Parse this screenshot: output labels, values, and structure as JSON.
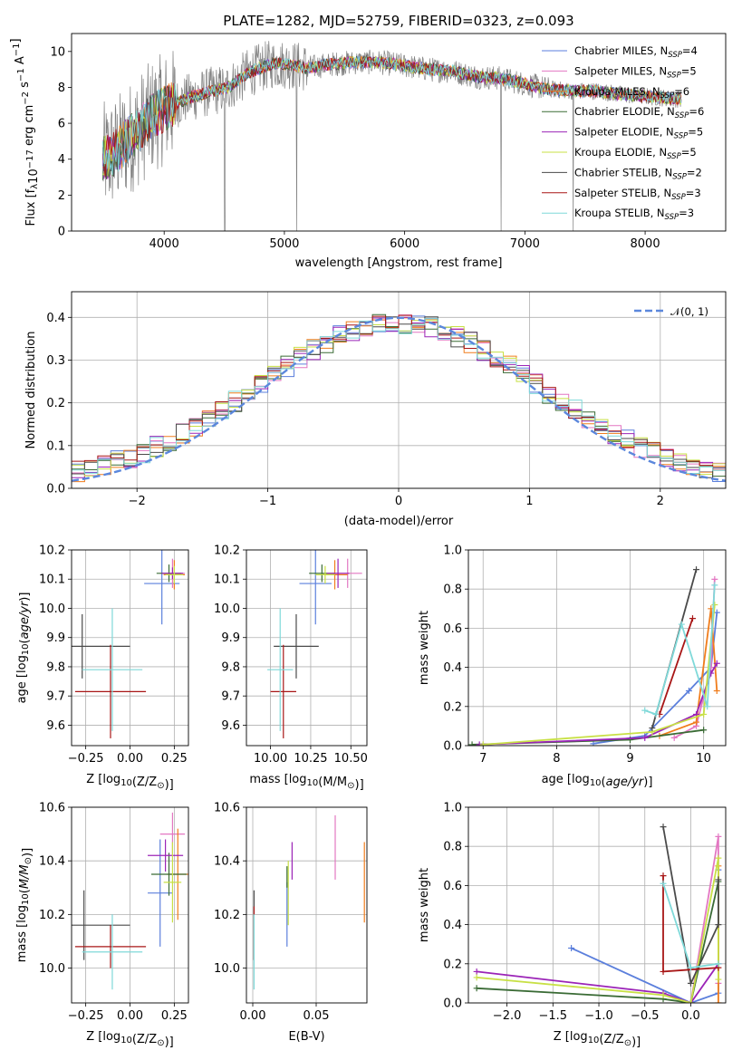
{
  "colors": {
    "chab_miles": "#5b7fdc",
    "salp_miles": "#e377c2",
    "krou_miles": "#f07d1c",
    "chab_elodie": "#3a6b35",
    "salp_elodie": "#9b24b7",
    "krou_elodie": "#c8e045",
    "chab_stelib": "#4a4a4a",
    "salp_stelib": "#a81616",
    "krou_stelib": "#7fd9d9",
    "data": "#808080",
    "gauss": "#5b87dc",
    "grid": "#b0b0b0"
  },
  "chart_data": [
    {
      "id": "spectrum",
      "type": "line",
      "title": "PLATE=1282, MJD=52759, FIBERID=0323, z=0.093",
      "xlabel": "wavelength [Angstrom, rest frame]",
      "ylabel_pre": "Flux [f",
      "ylabel_sub": "λ",
      "ylabel_mid": "10",
      "ylabel_exp": "−17",
      "ylabel_mid2": " erg cm",
      "ylabel_exp2": "−2",
      "ylabel_mid3": " s",
      "ylabel_exp3": "−1",
      "ylabel_mid4": " A",
      "ylabel_exp4": "−1",
      "ylabel_end": "]",
      "xlim": [
        3230,
        8670
      ],
      "ylim": [
        0,
        11
      ],
      "xticks": [
        4000,
        5000,
        6000,
        7000,
        8000
      ],
      "yticks": [
        0,
        2,
        4,
        6,
        8,
        10
      ],
      "legend_pos": "top-right",
      "continuum": [
        [
          3490,
          4.0
        ],
        [
          3600,
          4.4
        ],
        [
          3700,
          5.1
        ],
        [
          3800,
          5.7
        ],
        [
          3900,
          6.4
        ],
        [
          4000,
          6.8
        ],
        [
          4100,
          7.1
        ],
        [
          4200,
          7.4
        ],
        [
          4300,
          7.6
        ],
        [
          4400,
          7.8
        ],
        [
          4500,
          7.9
        ],
        [
          4600,
          8.3
        ],
        [
          4700,
          8.8
        ],
        [
          4800,
          9.1
        ],
        [
          4900,
          9.3
        ],
        [
          5000,
          9.3
        ],
        [
          5200,
          9.1
        ],
        [
          5400,
          9.3
        ],
        [
          5600,
          9.4
        ],
        [
          5800,
          9.4
        ],
        [
          6000,
          9.2
        ],
        [
          6200,
          9.0
        ],
        [
          6400,
          8.9
        ],
        [
          6600,
          8.6
        ],
        [
          6800,
          8.5
        ],
        [
          7000,
          8.2
        ],
        [
          7200,
          7.9
        ],
        [
          7400,
          7.8
        ],
        [
          7600,
          7.8
        ],
        [
          7800,
          7.6
        ],
        [
          8000,
          7.5
        ],
        [
          8200,
          7.4
        ],
        [
          8300,
          7.35
        ]
      ],
      "series": [
        {
          "key": "chab_miles",
          "name": "Chabrier MILES, N",
          "sub": "SSP",
          "val": "=4"
        },
        {
          "key": "salp_miles",
          "name": "Salpeter MILES, N",
          "sub": "SSP",
          "val": "=5"
        },
        {
          "key": "krou_miles",
          "name": "Kroupa MILES, N",
          "sub": "SSP",
          "val": "=6"
        },
        {
          "key": "chab_elodie",
          "name": "Chabrier ELODIE, N",
          "sub": "SSP",
          "val": "=6"
        },
        {
          "key": "salp_elodie",
          "name": "Salpeter ELODIE, N",
          "sub": "SSP",
          "val": "=5"
        },
        {
          "key": "krou_elodie",
          "name": "Kroupa ELODIE, N",
          "sub": "SSP",
          "val": "=5"
        },
        {
          "key": "chab_stelib",
          "name": "Chabrier STELIB, N",
          "sub": "SSP",
          "val": "=2"
        },
        {
          "key": "salp_stelib",
          "name": "Salpeter STELIB, N",
          "sub": "SSP",
          "val": "=3"
        },
        {
          "key": "krou_stelib",
          "name": "Kroupa STELIB, N",
          "sub": "SSP",
          "val": "=3"
        }
      ]
    },
    {
      "id": "hist",
      "type": "line",
      "xlabel": "(data-model)/error",
      "ylabel": "Normed distribution",
      "xlim": [
        -2.5,
        2.5
      ],
      "ylim": [
        0,
        0.46
      ],
      "xticks": [
        -2,
        -1,
        0,
        1,
        2
      ],
      "yticks": [
        0.0,
        0.1,
        0.2,
        0.3,
        0.4
      ],
      "legend_pos": "top-right",
      "gauss_label": "𝒩(0, 1)",
      "bin_width": 0.1,
      "hist_series": [
        "chab_miles",
        "salp_miles",
        "krou_miles",
        "chab_elodie",
        "salp_elodie",
        "krou_elodie",
        "chab_stelib",
        "salp_stelib",
        "krou_stelib"
      ]
    },
    {
      "id": "age_z",
      "type": "scatter",
      "xlabel_pre": "Z [log",
      "xlabel_sub": "10",
      "xlabel_post": "(Z/Z",
      "xlabel_sun": "⊙",
      "xlabel_end": ")]",
      "ylabel": "age  [log10(age/yr)]",
      "xlim": [
        -0.33,
        0.33
      ],
      "ylim": [
        9.53,
        10.2
      ],
      "xticks": [
        -0.25,
        0.0,
        0.25
      ],
      "yticks": [
        9.6,
        9.7,
        9.8,
        9.9,
        10.0,
        10.1,
        10.2
      ],
      "points": [
        {
          "key": "chab_miles",
          "x": 0.18,
          "xe": 0.1,
          "y": 10.085,
          "ye": 0.14
        },
        {
          "key": "salp_miles",
          "x": 0.24,
          "xe": 0.07,
          "y": 10.12,
          "ye": 0.05
        },
        {
          "key": "krou_miles",
          "x": 0.25,
          "xe": 0.06,
          "y": 10.115,
          "ye": 0.05
        },
        {
          "key": "chab_elodie",
          "x": 0.22,
          "xe": 0.07,
          "y": 10.12,
          "ye": 0.03
        },
        {
          "key": "salp_elodie",
          "x": 0.24,
          "xe": 0.06,
          "y": 10.12,
          "ye": 0.02
        },
        {
          "key": "krou_elodie",
          "x": 0.25,
          "xe": 0.05,
          "y": 10.115,
          "ye": 0.03
        },
        {
          "key": "chab_stelib",
          "x": -0.27,
          "xe": 0.27,
          "y": 9.87,
          "ye": 0.11
        },
        {
          "key": "salp_stelib",
          "x": -0.11,
          "xe": 0.2,
          "y": 9.715,
          "ye": 0.16
        },
        {
          "key": "krou_stelib",
          "x": -0.1,
          "xe": 0.17,
          "y": 9.79,
          "ye": 0.21
        }
      ]
    },
    {
      "id": "age_mass",
      "type": "scatter",
      "xlabel_pre": "mass [log",
      "xlabel_sub": "10",
      "xlabel_post": "(M/M",
      "xlabel_sun": "⊙",
      "xlabel_end": ")]",
      "xlim": [
        9.85,
        10.6
      ],
      "ylim": [
        9.53,
        10.2
      ],
      "xticks": [
        10.0,
        10.25,
        10.5
      ],
      "yticks": [
        9.6,
        9.7,
        9.8,
        9.9,
        10.0,
        10.1,
        10.2
      ],
      "points": [
        {
          "key": "chab_miles",
          "x": 10.28,
          "xe": 0.1,
          "y": 10.085,
          "ye": 0.14
        },
        {
          "key": "salp_miles",
          "x": 10.48,
          "xe": 0.09,
          "y": 10.12,
          "ye": 0.05
        },
        {
          "key": "krou_miles",
          "x": 10.4,
          "xe": 0.08,
          "y": 10.115,
          "ye": 0.05
        },
        {
          "key": "chab_elodie",
          "x": 10.32,
          "xe": 0.08,
          "y": 10.12,
          "ye": 0.03
        },
        {
          "key": "salp_elodie",
          "x": 10.42,
          "xe": 0.07,
          "y": 10.12,
          "ye": 0.05
        },
        {
          "key": "krou_elodie",
          "x": 10.34,
          "xe": 0.06,
          "y": 10.115,
          "ye": 0.03
        },
        {
          "key": "chab_stelib",
          "x": 10.16,
          "xe": 0.14,
          "y": 9.87,
          "ye": 0.11
        },
        {
          "key": "salp_stelib",
          "x": 10.08,
          "xe": 0.08,
          "y": 9.715,
          "ye": 0.16
        },
        {
          "key": "krou_stelib",
          "x": 10.06,
          "xe": 0.08,
          "y": 9.79,
          "ye": 0.21
        }
      ]
    },
    {
      "id": "mw_age",
      "type": "line",
      "xlabel": "age  [log10(age/yr)]",
      "ylabel": "mass weight",
      "xlim": [
        6.8,
        10.3
      ],
      "ylim": [
        0,
        1
      ],
      "xticks": [
        7,
        8,
        9,
        10
      ],
      "yticks": [
        0.0,
        0.2,
        0.4,
        0.6,
        0.8,
        1.0
      ],
      "lines": [
        {
          "key": "chab_miles",
          "x": [
            8.5,
            9.2,
            9.8,
            10.1,
            10.18
          ],
          "y": [
            0.01,
            0.05,
            0.28,
            0.4,
            0.68
          ]
        },
        {
          "key": "salp_miles",
          "x": [
            9.6,
            9.9,
            10.1,
            10.15
          ],
          "y": [
            0.04,
            0.1,
            0.4,
            0.85
          ]
        },
        {
          "key": "krou_miles",
          "x": [
            9.4,
            9.9,
            10.1,
            10.18
          ],
          "y": [
            0.05,
            0.12,
            0.7,
            0.28
          ]
        },
        {
          "key": "chab_elodie",
          "x": [
            6.85,
            9.0,
            10.0
          ],
          "y": [
            0.005,
            0.03,
            0.08
          ]
        },
        {
          "key": "salp_elodie",
          "x": [
            6.95,
            9.2,
            9.9,
            10.1,
            10.18
          ],
          "y": [
            0.005,
            0.04,
            0.16,
            0.37,
            0.42
          ]
        },
        {
          "key": "krou_elodie",
          "x": [
            7.0,
            9.3,
            10.0,
            10.15
          ],
          "y": [
            0.005,
            0.07,
            0.16,
            0.72
          ]
        },
        {
          "key": "chab_stelib",
          "x": [
            9.3,
            9.9
          ],
          "y": [
            0.09,
            0.9
          ]
        },
        {
          "key": "salp_stelib",
          "x": [
            9.4,
            9.85
          ],
          "y": [
            0.16,
            0.65
          ]
        },
        {
          "key": "krou_stelib",
          "x": [
            9.2,
            9.35,
            9.7,
            10.05,
            10.15
          ],
          "y": [
            0.18,
            0.16,
            0.62,
            0.2,
            0.82
          ]
        }
      ]
    },
    {
      "id": "mass_z",
      "type": "scatter",
      "xlabel_pre": "Z [log",
      "xlabel_sub": "10",
      "xlabel_post": "(Z/Z",
      "xlabel_sun": "⊙",
      "xlabel_end": ")]",
      "ylabel": "mass [log10(M/M⊙)]",
      "xlim": [
        -0.33,
        0.33
      ],
      "ylim": [
        9.87,
        10.6
      ],
      "xticks": [
        -0.25,
        0.0,
        0.25
      ],
      "yticks": [
        10.0,
        10.2,
        10.4,
        10.6
      ],
      "points": [
        {
          "key": "chab_miles",
          "x": 0.17,
          "xe": 0.07,
          "y": 10.28,
          "ye": 0.2
        },
        {
          "key": "salp_miles",
          "x": 0.24,
          "xe": 0.07,
          "y": 10.5,
          "ye": 0.08
        },
        {
          "key": "krou_miles",
          "x": 0.27,
          "xe": 0.06,
          "y": 10.35,
          "ye": 0.17
        },
        {
          "key": "chab_elodie",
          "x": 0.22,
          "xe": 0.1,
          "y": 10.35,
          "ye": 0.08
        },
        {
          "key": "salp_elodie",
          "x": 0.2,
          "xe": 0.1,
          "y": 10.42,
          "ye": 0.06
        },
        {
          "key": "krou_elodie",
          "x": 0.24,
          "xe": 0.05,
          "y": 10.32,
          "ye": 0.15
        },
        {
          "key": "chab_stelib",
          "x": -0.26,
          "xe": 0.26,
          "y": 10.16,
          "ye": 0.13
        },
        {
          "key": "salp_stelib",
          "x": -0.11,
          "xe": 0.2,
          "y": 10.08,
          "ye": 0.08
        },
        {
          "key": "krou_stelib",
          "x": -0.1,
          "xe": 0.17,
          "y": 10.06,
          "ye": 0.14
        }
      ]
    },
    {
      "id": "mass_ebv",
      "type": "scatter",
      "xlabel": "E(B-V)",
      "xlim": [
        -0.005,
        0.09
      ],
      "ylim": [
        9.87,
        10.6
      ],
      "xticks": [
        0.0,
        0.05
      ],
      "yticks": [
        10.0,
        10.2,
        10.4,
        10.6
      ],
      "points": [
        {
          "key": "chab_miles",
          "x": 0.027,
          "y": 10.2,
          "ye": 0.12
        },
        {
          "key": "salp_miles",
          "x": 0.065,
          "y": 10.45,
          "ye": 0.12
        },
        {
          "key": "krou_miles",
          "x": 0.088,
          "y": 10.32,
          "ye": 0.15
        },
        {
          "key": "chab_elodie",
          "x": 0.027,
          "y": 10.34,
          "ye": 0.04
        },
        {
          "key": "salp_elodie",
          "x": 0.031,
          "y": 10.4,
          "ye": 0.07
        },
        {
          "key": "krou_elodie",
          "x": 0.028,
          "y": 10.28,
          "ye": 0.12
        },
        {
          "key": "chab_stelib",
          "x": 0.001,
          "y": 10.16,
          "ye": 0.13
        },
        {
          "key": "salp_stelib",
          "x": 0.001,
          "y": 10.13,
          "ye": 0.1
        },
        {
          "key": "krou_stelib",
          "x": 0.001,
          "y": 10.06,
          "ye": 0.14
        }
      ]
    },
    {
      "id": "mw_z",
      "type": "line",
      "xlabel_pre": "Z [log",
      "xlabel_sub": "10",
      "xlabel_post": "(Z/Z",
      "xlabel_sun": "⊙",
      "xlabel_end": ")]",
      "ylabel": "mass weight",
      "xlim": [
        -2.42,
        0.38
      ],
      "ylim": [
        0,
        1
      ],
      "xticks": [
        -2.0,
        -1.5,
        -1.0,
        -0.5,
        0.0
      ],
      "yticks": [
        0.0,
        0.2,
        0.4,
        0.6,
        0.8,
        1.0
      ],
      "lines": [
        {
          "key": "chab_miles",
          "x": [
            -1.3,
            0.0,
            0.3,
            0.3
          ],
          "y": [
            0.28,
            0.0,
            0.05,
            0.68
          ]
        },
        {
          "key": "salp_miles",
          "x": [
            0.0,
            0.3,
            0.3
          ],
          "y": [
            0.0,
            0.85,
            0.1
          ]
        },
        {
          "key": "krou_miles",
          "x": [
            0.3,
            0.3
          ],
          "y": [
            0.0,
            0.7
          ]
        },
        {
          "key": "chab_elodie",
          "x": [
            -2.33,
            -0.3,
            0.0,
            0.3
          ],
          "y": [
            0.075,
            0.02,
            0.0,
            0.62
          ]
        },
        {
          "key": "salp_elodie",
          "x": [
            -2.33,
            -0.3,
            0.0,
            0.3
          ],
          "y": [
            0.16,
            0.05,
            0.0,
            0.2
          ]
        },
        {
          "key": "krou_elodie",
          "x": [
            -2.33,
            -0.3,
            0.0,
            0.3,
            0.3
          ],
          "y": [
            0.13,
            0.04,
            0.0,
            0.74,
            0.12
          ]
        },
        {
          "key": "chab_stelib",
          "x": [
            -0.3,
            0.0,
            0.3,
            0.3
          ],
          "y": [
            0.9,
            0.1,
            0.4,
            0.63
          ]
        },
        {
          "key": "salp_stelib",
          "x": [
            -0.3,
            -0.3,
            0.3
          ],
          "y": [
            0.65,
            0.16,
            0.18
          ]
        },
        {
          "key": "krou_stelib",
          "x": [
            -0.3,
            0.0,
            0.3
          ],
          "y": [
            0.61,
            0.18,
            0.2
          ]
        }
      ]
    }
  ]
}
